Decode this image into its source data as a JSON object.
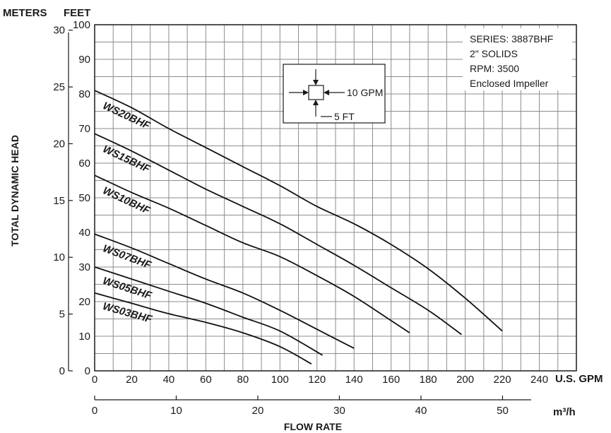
{
  "chart_data": {
    "type": "line",
    "title": "",
    "xlabel": "FLOW RATE",
    "ylabel": "TOTAL DYNAMIC HEAD",
    "x_unit_primary": "U.S. GPM",
    "x_unit_secondary": "m³/h",
    "y_unit_left_outer": "METERS",
    "y_unit_left_inner": "FEET",
    "xlim": [
      0,
      260
    ],
    "ylim": [
      0,
      100
    ],
    "grid": true,
    "x_ticks": [
      "0",
      "20",
      "40",
      "60",
      "80",
      "100",
      "120",
      "140",
      "160",
      "180",
      "200",
      "220",
      "240"
    ],
    "x_ticks_m3h": [
      "0",
      "10",
      "20",
      "30",
      "40",
      "50"
    ],
    "y_ticks_feet": [
      "0",
      "10",
      "20",
      "30",
      "40",
      "50",
      "60",
      "70",
      "80",
      "90",
      "100"
    ],
    "y_ticks_meters": [
      "0",
      "5",
      "10",
      "15",
      "20",
      "25",
      "30"
    ],
    "series": [
      {
        "name": "WS20BHF",
        "x": [
          0,
          20,
          40,
          60,
          80,
          100,
          120,
          140,
          160,
          180,
          200,
          220
        ],
        "y": [
          81,
          76,
          70,
          64.5,
          59,
          53.5,
          47.5,
          42.5,
          36.5,
          29.5,
          21,
          11.5
        ]
      },
      {
        "name": "WS15BHF",
        "x": [
          0,
          20,
          40,
          60,
          80,
          100,
          120,
          140,
          160,
          180,
          198
        ],
        "y": [
          68.5,
          63.5,
          58,
          52.5,
          47.5,
          42.5,
          36.5,
          30.5,
          24,
          17.5,
          10.5
        ]
      },
      {
        "name": "WS10BHF",
        "x": [
          0,
          20,
          40,
          60,
          80,
          100,
          120,
          140,
          160,
          170
        ],
        "y": [
          56.5,
          51.5,
          47,
          42,
          37,
          33,
          27.5,
          21.5,
          14.5,
          11
        ]
      },
      {
        "name": "WS07BHF",
        "x": [
          0,
          20,
          40,
          60,
          80,
          100,
          120,
          140
        ],
        "y": [
          39.5,
          35.5,
          31,
          26.5,
          22.5,
          17.5,
          12,
          6.5
        ]
      },
      {
        "name": "WS05BHF",
        "x": [
          0,
          20,
          40,
          60,
          80,
          100,
          123
        ],
        "y": [
          30,
          26.5,
          23,
          19.5,
          15.5,
          11.5,
          4.5
        ]
      },
      {
        "name": "WS03BHF",
        "x": [
          0,
          20,
          40,
          60,
          80,
          100,
          117
        ],
        "y": [
          22.5,
          19.5,
          16.5,
          14,
          11,
          7,
          2
        ]
      }
    ],
    "legend_box": {
      "lines": [
        "SERIES: 3887BHF",
        "2\" SOLIDS",
        "RPM: 3500",
        "Enclosed Impeller"
      ],
      "placement": "top-right"
    },
    "scale_box": {
      "flow_label": "10 GPM",
      "head_label": "5 FT"
    }
  }
}
